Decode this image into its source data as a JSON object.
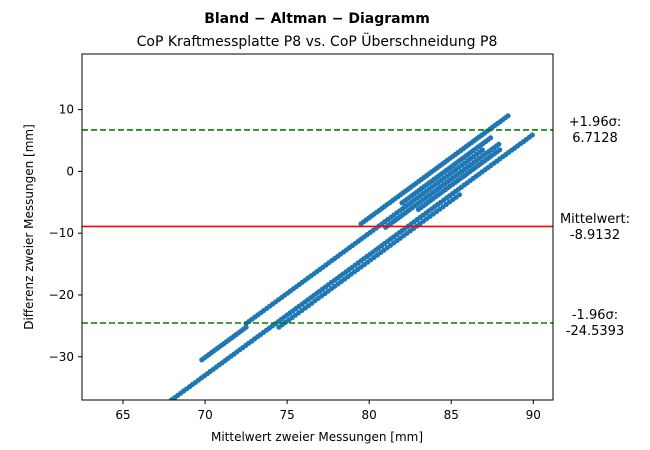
{
  "chart_data": {
    "type": "scatter",
    "title": "Bland − Altman − Diagramm",
    "subtitle": "CoP Kraftmessplatte P8 vs. CoP Überschneidung P8",
    "xlabel": "Mittelwert zweier Messungen [mm]",
    "ylabel": "Differenz zweier Messungen [mm]",
    "xlim": [
      62.5,
      91.2
    ],
    "ylim": [
      -37,
      19
    ],
    "xticks": [
      65,
      70,
      75,
      80,
      85,
      90
    ],
    "yticks": [
      -30,
      -20,
      -10,
      0,
      10
    ],
    "grid": false,
    "colors": {
      "points": "#1f77b4",
      "mean": "#ff0000",
      "limits": "#008000"
    },
    "reference_lines": {
      "upper": {
        "value": 6.7128,
        "label_top": "+1.96σ:",
        "label_bottom": "6.7128"
      },
      "mean": {
        "value": -8.9132,
        "label_top": "Mittelwert:",
        "label_bottom": "-8.9132"
      },
      "lower": {
        "value": -24.5393,
        "label_top": "-1.96σ:",
        "label_bottom": "-24.5393"
      }
    },
    "series": [
      {
        "segments": [
          {
            "x_start": 67.8,
            "x_end": 90.0,
            "slope": 1.95,
            "intercept": -169.5,
            "step": 0.18
          },
          {
            "x_start": 69.8,
            "x_end": 72.5,
            "slope": 1.95,
            "intercept": -166.6,
            "step": 0.15
          },
          {
            "x_start": 72.5,
            "x_end": 87.0,
            "slope": 1.95,
            "intercept": -166.0,
            "step": 0.18
          },
          {
            "x_start": 74.5,
            "x_end": 85.5,
            "slope": 1.95,
            "intercept": -170.5,
            "step": 0.2
          },
          {
            "x_start": 79.5,
            "x_end": 88.5,
            "slope": 1.95,
            "intercept": -163.5,
            "step": 0.16
          },
          {
            "x_start": 81.0,
            "x_end": 88.0,
            "slope": 1.95,
            "intercept": -167.0,
            "step": 0.15
          },
          {
            "x_start": 82.0,
            "x_end": 87.5,
            "slope": 1.95,
            "intercept": -165.0,
            "step": 0.15
          },
          {
            "x_start": 83.0,
            "x_end": 88.0,
            "slope": 1.95,
            "intercept": -168.0,
            "step": 0.15
          }
        ]
      }
    ]
  }
}
